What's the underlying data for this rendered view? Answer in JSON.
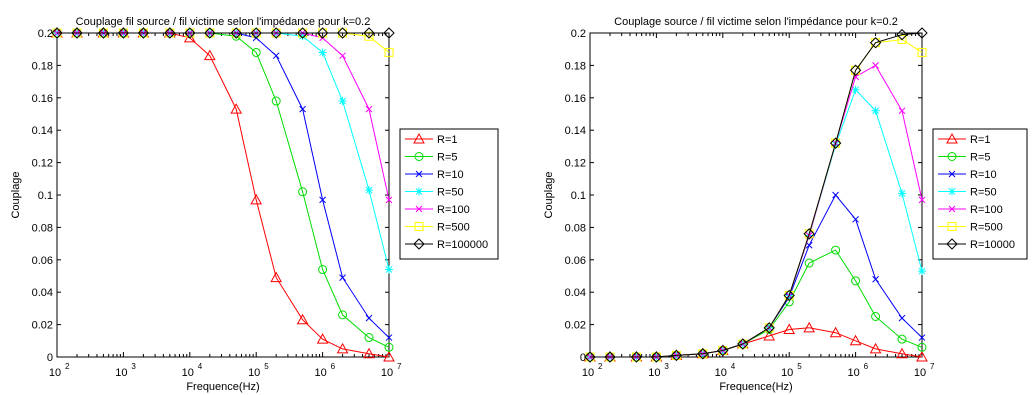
{
  "chart_data": [
    {
      "type": "line",
      "title": "Couplage fil source / fil victime selon l'impédance pour k=0.2",
      "xlabel": "Frequence(Hz)",
      "ylabel": "Couplage",
      "xscale": "log",
      "xlim": [
        100,
        10000000
      ],
      "ylim": [
        0,
        0.2
      ],
      "x_ticks": [
        {
          "base": "10",
          "exp": "2"
        },
        {
          "base": "10",
          "exp": "3"
        },
        {
          "base": "10",
          "exp": "4"
        },
        {
          "base": "10",
          "exp": "5"
        },
        {
          "base": "10",
          "exp": "6"
        },
        {
          "base": "10",
          "exp": "7"
        }
      ],
      "y_ticks": [
        "0",
        "0.02",
        "0.04",
        "0.06",
        "0.08",
        "0.1",
        "0.12",
        "0.14",
        "0.16",
        "0.18",
        "0.2"
      ],
      "legend_position": "outside-right",
      "x": [
        100,
        200,
        500,
        1000,
        2000,
        5000,
        10000,
        20000,
        50000,
        100000,
        200000,
        500000,
        1000000,
        2000000,
        5000000,
        10000000
      ],
      "series": [
        {
          "name": "R=1",
          "color": "#ff0000",
          "marker": "triangle",
          "values": [
            0.2,
            0.2,
            0.2,
            0.2,
            0.2,
            0.2,
            0.197,
            0.186,
            0.153,
            0.097,
            0.049,
            0.023,
            0.011,
            0.005,
            0.002,
            0.0
          ]
        },
        {
          "name": "R=5",
          "color": "#00dd00",
          "marker": "circle",
          "values": [
            0.2,
            0.2,
            0.2,
            0.2,
            0.2,
            0.2,
            0.2,
            0.2,
            0.198,
            0.188,
            0.158,
            0.102,
            0.054,
            0.026,
            0.012,
            0.006
          ]
        },
        {
          "name": "R=10",
          "color": "#0000ff",
          "marker": "x",
          "values": [
            0.2,
            0.2,
            0.2,
            0.2,
            0.2,
            0.2,
            0.2,
            0.2,
            0.2,
            0.197,
            0.186,
            0.153,
            0.097,
            0.049,
            0.024,
            0.012
          ]
        },
        {
          "name": "R=50",
          "color": "#00ffff",
          "marker": "star",
          "values": [
            0.2,
            0.2,
            0.2,
            0.2,
            0.2,
            0.2,
            0.2,
            0.2,
            0.2,
            0.2,
            0.2,
            0.198,
            0.188,
            0.158,
            0.103,
            0.054
          ]
        },
        {
          "name": "R=100",
          "color": "#ff00ff",
          "marker": "x",
          "values": [
            0.2,
            0.2,
            0.2,
            0.2,
            0.2,
            0.2,
            0.2,
            0.2,
            0.2,
            0.2,
            0.2,
            0.2,
            0.197,
            0.186,
            0.153,
            0.097
          ]
        },
        {
          "name": "R=500",
          "color": "#ffff00",
          "marker": "square",
          "values": [
            0.2,
            0.2,
            0.2,
            0.2,
            0.2,
            0.2,
            0.2,
            0.2,
            0.2,
            0.2,
            0.2,
            0.2,
            0.2,
            0.2,
            0.198,
            0.188
          ]
        },
        {
          "name": "R=100000",
          "color": "#000000",
          "marker": "diamond",
          "values": [
            0.2,
            0.2,
            0.2,
            0.2,
            0.2,
            0.2,
            0.2,
            0.2,
            0.2,
            0.2,
            0.2,
            0.2,
            0.2,
            0.2,
            0.2,
            0.2
          ]
        }
      ]
    },
    {
      "type": "line",
      "title": "Couplage source / fil victime selon l'impédance pour k=0.2",
      "xlabel": "Frequence(Hz)",
      "ylabel": "Couplage",
      "xscale": "log",
      "xlim": [
        100,
        10000000
      ],
      "ylim": [
        0,
        0.2
      ],
      "x_ticks": [
        {
          "base": "10",
          "exp": "2"
        },
        {
          "base": "10",
          "exp": "3"
        },
        {
          "base": "10",
          "exp": "4"
        },
        {
          "base": "10",
          "exp": "5"
        },
        {
          "base": "10",
          "exp": "6"
        },
        {
          "base": "10",
          "exp": "7"
        }
      ],
      "y_ticks": [
        "0",
        "0.02",
        "0.04",
        "0.06",
        "0.08",
        "0.1",
        "0.12",
        "0.14",
        "0.16",
        "0.18",
        "0.2"
      ],
      "legend_position": "outside-right",
      "x": [
        100,
        200,
        500,
        1000,
        2000,
        5000,
        10000,
        20000,
        50000,
        100000,
        200000,
        500000,
        1000000,
        2000000,
        5000000,
        10000000
      ],
      "series": [
        {
          "name": "R=1",
          "color": "#ff0000",
          "marker": "triangle",
          "values": [
            0.0,
            0.0,
            0.0,
            0.0,
            0.001,
            0.002,
            0.004,
            0.008,
            0.013,
            0.017,
            0.018,
            0.015,
            0.01,
            0.005,
            0.002,
            0.0
          ]
        },
        {
          "name": "R=5",
          "color": "#00dd00",
          "marker": "circle",
          "values": [
            0.0,
            0.0,
            0.0,
            0.0,
            0.001,
            0.002,
            0.004,
            0.008,
            0.017,
            0.034,
            0.058,
            0.066,
            0.047,
            0.025,
            0.011,
            0.006
          ]
        },
        {
          "name": "R=10",
          "color": "#0000ff",
          "marker": "x",
          "values": [
            0.0,
            0.0,
            0.0,
            0.0,
            0.001,
            0.002,
            0.004,
            0.008,
            0.018,
            0.037,
            0.069,
            0.1,
            0.085,
            0.048,
            0.024,
            0.012
          ]
        },
        {
          "name": "R=50",
          "color": "#00ffff",
          "marker": "star",
          "values": [
            0.0,
            0.0,
            0.0,
            0.0,
            0.001,
            0.002,
            0.004,
            0.008,
            0.018,
            0.038,
            0.075,
            0.131,
            0.165,
            0.152,
            0.101,
            0.053
          ]
        },
        {
          "name": "R=100",
          "color": "#ff00ff",
          "marker": "x",
          "values": [
            0.0,
            0.0,
            0.0,
            0.0,
            0.001,
            0.002,
            0.004,
            0.008,
            0.018,
            0.038,
            0.075,
            0.132,
            0.173,
            0.18,
            0.152,
            0.097
          ]
        },
        {
          "name": "R=500",
          "color": "#ffff00",
          "marker": "square",
          "values": [
            0.0,
            0.0,
            0.0,
            0.0,
            0.001,
            0.002,
            0.004,
            0.008,
            0.018,
            0.038,
            0.076,
            0.132,
            0.177,
            0.194,
            0.196,
            0.188
          ]
        },
        {
          "name": "R=10000",
          "color": "#000000",
          "marker": "diamond",
          "values": [
            0.0,
            0.0,
            0.0,
            0.0,
            0.001,
            0.002,
            0.004,
            0.008,
            0.018,
            0.038,
            0.076,
            0.132,
            0.177,
            0.194,
            0.199,
            0.2
          ]
        }
      ]
    }
  ]
}
